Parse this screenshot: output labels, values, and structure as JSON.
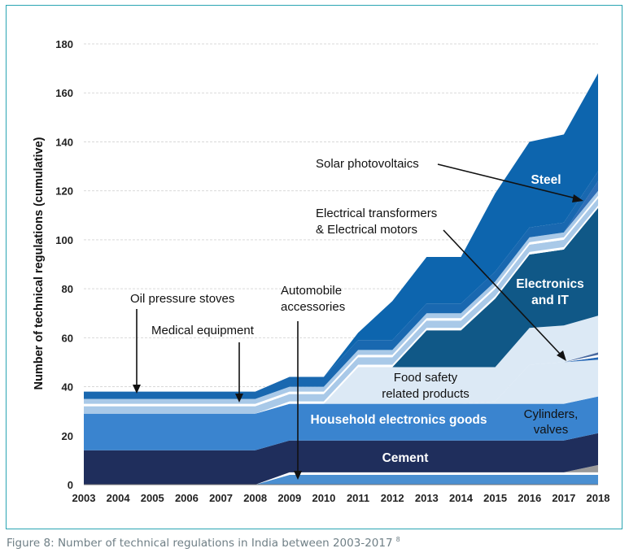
{
  "chart_data": {
    "type": "area",
    "stacked": true,
    "ylabel": "Number of technical regulations (cumulative)",
    "ylim": [
      0,
      180
    ],
    "yticks": [
      0,
      20,
      40,
      60,
      80,
      100,
      120,
      140,
      160,
      180
    ],
    "grid": true,
    "x": [
      "2003",
      "2004",
      "2005",
      "2006",
      "2007",
      "2008",
      "2009",
      "2010",
      "2011",
      "2012",
      "2013",
      "2014",
      "2015",
      "2016",
      "2017",
      "2018"
    ],
    "series": [
      {
        "name": "Automobile accessories",
        "color": "#4a8fd1",
        "values": [
          0,
          0,
          0,
          0,
          0,
          0,
          4,
          4,
          4,
          4,
          4,
          4,
          4,
          4,
          4,
          4
        ]
      },
      {
        "name": "",
        "color": "#ffffff",
        "values": [
          0,
          0,
          0,
          0,
          0,
          0,
          1,
          1,
          1,
          1,
          1,
          1,
          1,
          1,
          1,
          1
        ]
      },
      {
        "name": "",
        "color": "#9a9a9a",
        "values": [
          0,
          0,
          0,
          0,
          0,
          0,
          0,
          0,
          0,
          0,
          0,
          0,
          0,
          0,
          0,
          3
        ]
      },
      {
        "name": "Cement",
        "color": "#1f2e5c",
        "values": [
          14,
          14,
          14,
          14,
          14,
          14,
          13,
          13,
          13,
          13,
          13,
          13,
          13,
          13,
          13,
          13
        ]
      },
      {
        "name": "Household electronics goods",
        "color": "#3a84cf",
        "values": [
          15,
          15,
          15,
          15,
          15,
          15,
          15,
          15,
          15,
          15,
          15,
          15,
          15,
          15,
          15,
          15
        ]
      },
      {
        "name": "Cylinders, valves",
        "color": "#dce9f5",
        "values": [
          0,
          0,
          0,
          0,
          0,
          0,
          0,
          0,
          0,
          0,
          0,
          0,
          1,
          16,
          17,
          15
        ]
      },
      {
        "name": "",
        "color": "#4a8fd1",
        "values": [
          0,
          0,
          0,
          0,
          0,
          0,
          0,
          0,
          0,
          0,
          0,
          0,
          0,
          0,
          0,
          0
        ]
      },
      {
        "name": "",
        "color": "#2366b5",
        "values": [
          0,
          0,
          0,
          0,
          0,
          0,
          0,
          0,
          0,
          0,
          0,
          0,
          0,
          0,
          0,
          1
        ]
      },
      {
        "name": "Electrical transformers & Electrical motors",
        "color": "#ffffff",
        "values": [
          0,
          0,
          0,
          0,
          0,
          0,
          0,
          0,
          0,
          0,
          0,
          0,
          0,
          0,
          0,
          1
        ]
      },
      {
        "name": "",
        "color": "#4a6aa0",
        "values": [
          0,
          0,
          0,
          0,
          0,
          0,
          0,
          0,
          0,
          0,
          0,
          0,
          0,
          0,
          0,
          1
        ]
      },
      {
        "name": "Food safety related products",
        "color": "#dce9f5",
        "values": [
          0,
          0,
          0,
          0,
          0,
          0,
          0,
          0,
          15,
          15,
          15,
          15,
          14,
          15,
          15,
          15
        ]
      },
      {
        "name": "Electronics and IT",
        "color": "#105887",
        "values": [
          0,
          0,
          0,
          0,
          0,
          0,
          0,
          0,
          0,
          0,
          15,
          15,
          28,
          30,
          31,
          44
        ]
      },
      {
        "name": "",
        "color": "#ffffff",
        "values": [
          0,
          0,
          0,
          0,
          0,
          0,
          1,
          1,
          1,
          1,
          1,
          1,
          1,
          1,
          1,
          1
        ]
      },
      {
        "name": "",
        "color": "#a9c9e8",
        "values": [
          3,
          3,
          3,
          3,
          3,
          3,
          3,
          3,
          3,
          3,
          3,
          3,
          3,
          3,
          3,
          3
        ]
      },
      {
        "name": "Medical equipment",
        "color": "#ffffff",
        "values": [
          1,
          1,
          1,
          1,
          1,
          1,
          1,
          1,
          1,
          1,
          1,
          1,
          1,
          1,
          1,
          1
        ]
      },
      {
        "name": "",
        "color": "#a9c9e8",
        "values": [
          2,
          2,
          2,
          2,
          2,
          2,
          2,
          2,
          2,
          2,
          2,
          2,
          2,
          2,
          2,
          2
        ]
      },
      {
        "name": "Solar photovoltaics",
        "color": "#2f6eb6",
        "values": [
          0,
          0,
          0,
          0,
          0,
          0,
          0,
          0,
          0,
          0,
          0,
          0,
          0,
          0,
          0,
          4
        ]
      },
      {
        "name": "Oil pressure stoves",
        "color": "#1968b0",
        "values": [
          3,
          3,
          3,
          3,
          3,
          3,
          4,
          4,
          4,
          4,
          4,
          4,
          4,
          4,
          4,
          4
        ]
      },
      {
        "name": "Steel",
        "color": "#0d65ae",
        "values": [
          0,
          0,
          0,
          0,
          0,
          0,
          0,
          0,
          3,
          16,
          19,
          19,
          32,
          35,
          36,
          40
        ]
      }
    ],
    "annotations": [
      {
        "text": "Oil pressure stoves",
        "target_x": "2004"
      },
      {
        "text": "Medical equipment",
        "target_x": "2007"
      },
      {
        "text": "Automobile accessories",
        "target_x": "2009"
      },
      {
        "text": "Solar photovoltaics",
        "target_x": "2018"
      },
      {
        "text": "Electrical transformers & Electrical motors",
        "target_x": "2017"
      }
    ],
    "area_labels": [
      "Steel",
      "Electronics and IT",
      "Food safety related products",
      "Cylinders, valves",
      "Household electronics goods",
      "Cement"
    ]
  },
  "labels": {
    "oil_pressure_stoves": "Oil pressure stoves",
    "medical_equipment": "Medical equipment",
    "automobile_line1": "Automobile",
    "automobile_line2": "accessories",
    "solar": "Solar photovoltaics",
    "transformers_line1": "Electrical transformers",
    "transformers_line2": "& Electrical motors",
    "steel": "Steel",
    "electronics_line1": "Electronics",
    "electronics_line2": "and IT",
    "food_line1": "Food safety",
    "food_line2": "related products",
    "cylinders_line1": "Cylinders,",
    "cylinders_line2": "valves",
    "household": "Household electronics goods",
    "cement": "Cement"
  },
  "caption": {
    "text": "Figure 8: Number of technical regulations in India between 2003-2017",
    "ref": "8"
  }
}
